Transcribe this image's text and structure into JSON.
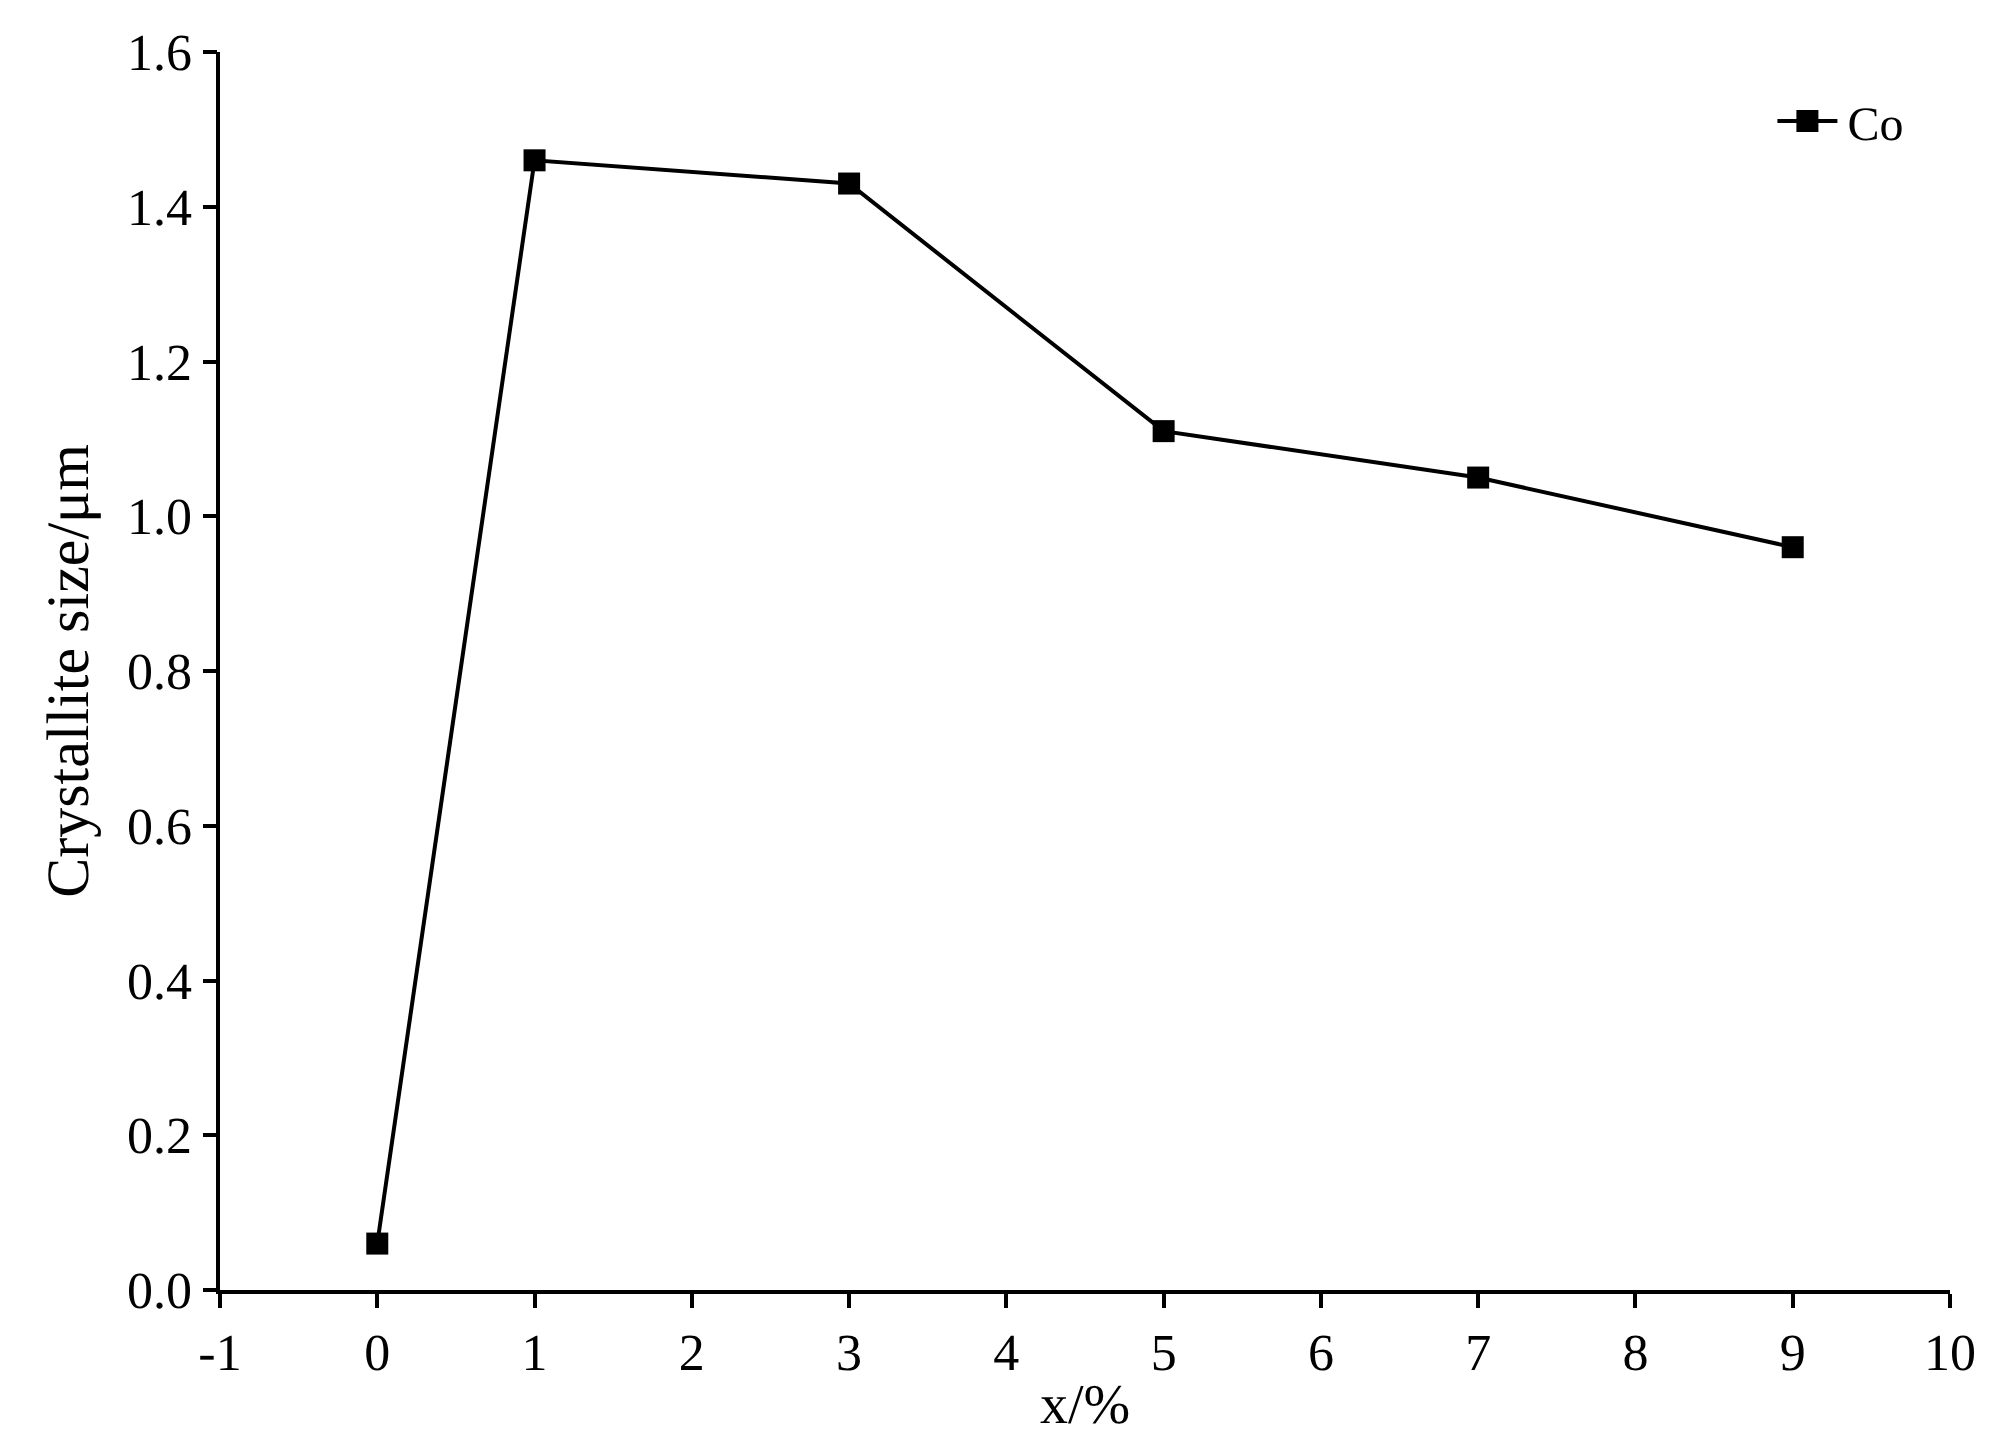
{
  "chart_data": {
    "type": "line",
    "xlabel": "x/%",
    "ylabel": "Crystallite size/μm",
    "x": [
      0,
      1,
      3,
      5,
      7,
      9
    ],
    "series": [
      {
        "name": "Co",
        "color": "#000000",
        "values": [
          0.06,
          1.46,
          1.43,
          1.11,
          1.05,
          0.96
        ]
      }
    ],
    "xlim": [
      -1,
      10
    ],
    "xticks": [
      -1,
      0,
      1,
      2,
      3,
      4,
      5,
      6,
      7,
      8,
      9,
      10
    ],
    "ylim": [
      0,
      1.6
    ],
    "yticks": [
      {
        "value": 0,
        "label": "0.0"
      },
      {
        "value": 0.2,
        "label": "0.2"
      },
      {
        "value": 0.4,
        "label": "0.4"
      },
      {
        "value": 0.6,
        "label": "0.6"
      },
      {
        "value": 0.8,
        "label": "0.8"
      },
      {
        "value": 1.0,
        "label": "1.0"
      },
      {
        "value": 1.2,
        "label": "1.2"
      },
      {
        "value": 1.4,
        "label": "1.4"
      },
      {
        "value": 1.6,
        "label": "1.6"
      }
    ],
    "legend": "top right",
    "marker": "square",
    "line_style": "solid"
  }
}
